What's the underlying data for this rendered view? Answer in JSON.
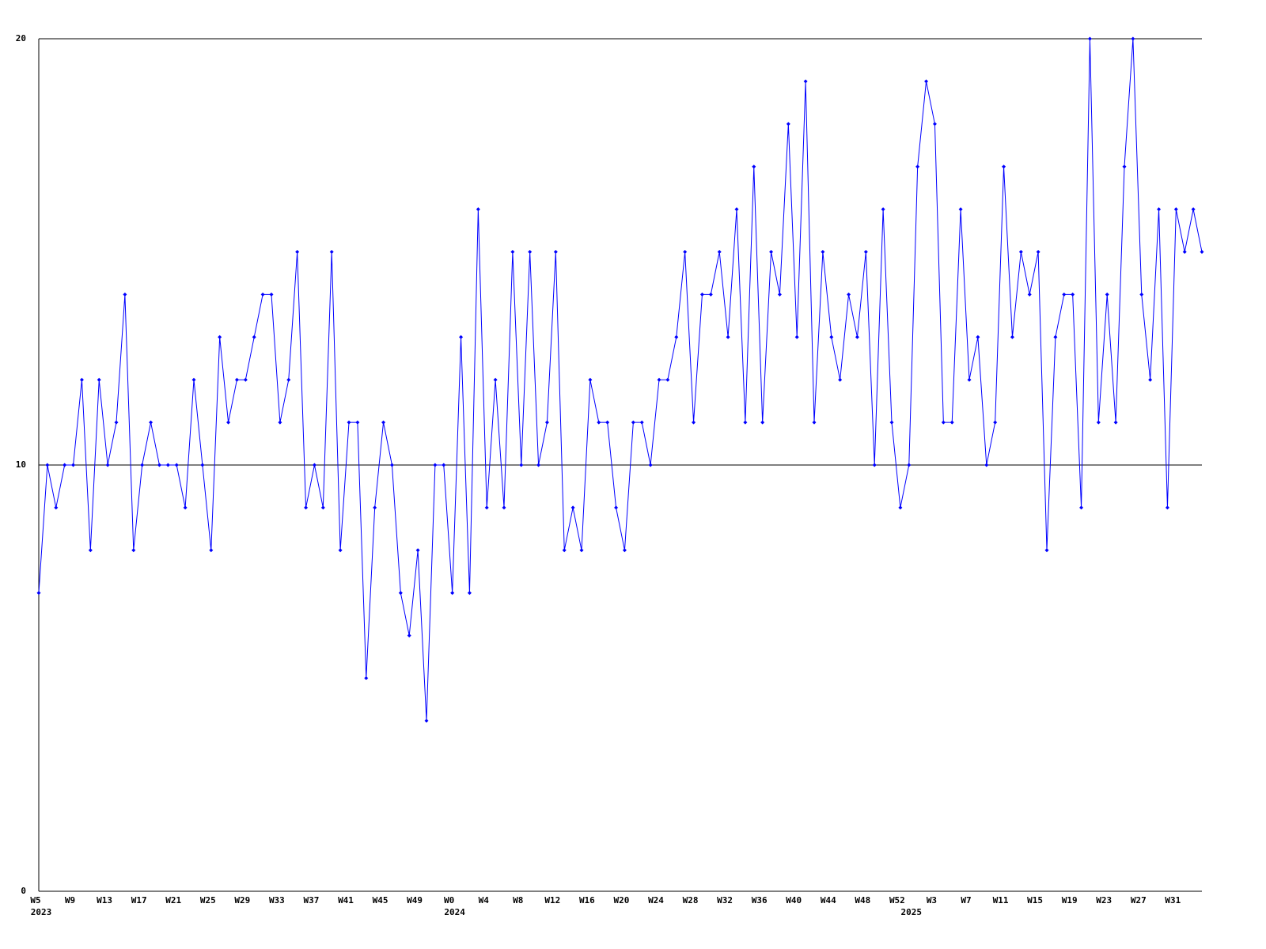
{
  "chart_data": {
    "type": "line",
    "categories": [
      "W5",
      null,
      null,
      null,
      "W9",
      null,
      null,
      null,
      "W13",
      null,
      null,
      null,
      "W17",
      null,
      null,
      null,
      "W21",
      null,
      null,
      null,
      "W25",
      null,
      null,
      null,
      "W29",
      null,
      null,
      null,
      "W33",
      null,
      null,
      null,
      "W37",
      null,
      null,
      null,
      "W41",
      null,
      null,
      null,
      "W45",
      null,
      null,
      null,
      "W49",
      null,
      null,
      null,
      "W0",
      null,
      null,
      null,
      "W4",
      null,
      null,
      null,
      "W8",
      null,
      null,
      null,
      "W12",
      null,
      null,
      null,
      "W16",
      null,
      null,
      null,
      "W20",
      null,
      null,
      null,
      "W24",
      null,
      null,
      null,
      "W28",
      null,
      null,
      null,
      "W32",
      null,
      null,
      null,
      "W36",
      null,
      null,
      null,
      "W40",
      null,
      null,
      null,
      "W44",
      null,
      null,
      null,
      "W48",
      null,
      null,
      null,
      "W52",
      null,
      null,
      null,
      "W3",
      null,
      null,
      null,
      "W7",
      null,
      null,
      null,
      "W11",
      null,
      null,
      null,
      "W15",
      null,
      null,
      null,
      "W19",
      null,
      null,
      null,
      "W23",
      null,
      null,
      null,
      "W27",
      null,
      null,
      null,
      "W31",
      null,
      null,
      null
    ],
    "year_labels": [
      "2023",
      null,
      null,
      null,
      null,
      null,
      null,
      null,
      null,
      null,
      null,
      null,
      null,
      null,
      null,
      null,
      null,
      null,
      null,
      null,
      null,
      null,
      null,
      null,
      null,
      null,
      null,
      null,
      null,
      null,
      null,
      null,
      null,
      null,
      null,
      null,
      null,
      null,
      null,
      null,
      null,
      null,
      null,
      null,
      null,
      null,
      null,
      null,
      "2024",
      null,
      null,
      null,
      null,
      null,
      null,
      null,
      null,
      null,
      null,
      null,
      null,
      null,
      null,
      null,
      null,
      null,
      null,
      null,
      null,
      null,
      null,
      null,
      null,
      null,
      null,
      null,
      null,
      null,
      null,
      null,
      null,
      null,
      null,
      null,
      null,
      null,
      null,
      null,
      null,
      null,
      null,
      null,
      null,
      null,
      null,
      null,
      null,
      null,
      null,
      null,
      null,
      "2025",
      null,
      null,
      null,
      null,
      null,
      null,
      null,
      null,
      null,
      null,
      null,
      null,
      null,
      null,
      null,
      null,
      null,
      null,
      null,
      null,
      null,
      null,
      null,
      null,
      null,
      null,
      null,
      null,
      null,
      null,
      null,
      null,
      null,
      null
    ],
    "series": [
      {
        "color": "#0000ff",
        "values": [
          7,
          10,
          9,
          10,
          10,
          12,
          8,
          12,
          10,
          11,
          14,
          8,
          10,
          11,
          10,
          10,
          10,
          9,
          12,
          10,
          8,
          13,
          11,
          12,
          12,
          13,
          14,
          14,
          11,
          12,
          15,
          9,
          10,
          9,
          15,
          8,
          11,
          11,
          5,
          9,
          11,
          10,
          7,
          6,
          8,
          4,
          10,
          10,
          7,
          13,
          7,
          16,
          9,
          12,
          9,
          15,
          10,
          15,
          10,
          11,
          15,
          8,
          9,
          8,
          12,
          11,
          11,
          9,
          8,
          11,
          11,
          10,
          12,
          12,
          13,
          15,
          11,
          14,
          14,
          15,
          13,
          16,
          11,
          17,
          11,
          15,
          14,
          18,
          13,
          19,
          11,
          15,
          13,
          12,
          14,
          13,
          15,
          10,
          16,
          11,
          9,
          10,
          17,
          19,
          18,
          11,
          11,
          16,
          12,
          13,
          10,
          11,
          17,
          13,
          15,
          14,
          15,
          8,
          13,
          14,
          14,
          9,
          20,
          11,
          14,
          11,
          17,
          20,
          14,
          12,
          16,
          9,
          16,
          15,
          16,
          15
        ]
      }
    ],
    "ylim": [
      0,
      20
    ],
    "yticks": [
      0,
      10,
      20
    ],
    "grid": true
  }
}
